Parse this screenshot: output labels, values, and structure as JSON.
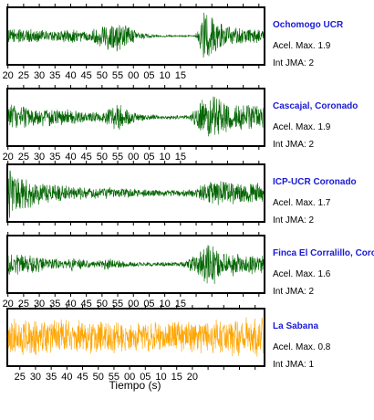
{
  "chart_data": {
    "type": "line",
    "xlabel": "Tiempo (s)",
    "panels": [
      {
        "station": "Ochomogo UCR",
        "acel_label": "Acel. Max. 1.9",
        "int_label": "Int JMA: 2",
        "color": "#006400",
        "tick_labels": [
          "20",
          "25",
          "30",
          "35",
          "40",
          "45",
          "50",
          "55",
          "00",
          "05",
          "10",
          "15"
        ],
        "amplitude": 1.9,
        "envelope": [
          [
            0,
            0.25
          ],
          [
            4,
            0.35
          ],
          [
            10,
            0.25
          ],
          [
            16,
            0.2
          ],
          [
            20,
            0.3
          ],
          [
            26,
            0.18
          ],
          [
            30,
            0.5
          ],
          [
            35,
            0.65
          ],
          [
            42,
            0.15
          ],
          [
            48,
            0.05
          ],
          [
            55,
            0.03
          ],
          [
            60,
            0.03
          ],
          [
            63,
            1.0
          ],
          [
            66,
            0.7
          ],
          [
            70,
            0.45
          ],
          [
            76,
            0.3
          ],
          [
            82,
            0.25
          ]
        ]
      },
      {
        "station": "Cascajal, Coronado",
        "acel_label": "Acel. Max. 1.9",
        "int_label": "Int JMA: 2",
        "color": "#006400",
        "tick_labels": [
          "20",
          "25",
          "30",
          "35",
          "40",
          "45",
          "50",
          "55",
          "00",
          "05",
          "10",
          "15"
        ],
        "amplitude": 1.9,
        "envelope": [
          [
            0,
            0.55
          ],
          [
            5,
            0.45
          ],
          [
            12,
            0.35
          ],
          [
            20,
            0.3
          ],
          [
            25,
            0.2
          ],
          [
            30,
            0.25
          ],
          [
            35,
            0.55
          ],
          [
            42,
            0.15
          ],
          [
            50,
            0.08
          ],
          [
            58,
            0.08
          ],
          [
            62,
            0.7
          ],
          [
            65,
            1.0
          ],
          [
            70,
            0.6
          ],
          [
            76,
            0.5
          ],
          [
            82,
            0.45
          ]
        ]
      },
      {
        "station": "ICP-UCR Coronado",
        "acel_label": "Acel. Max. 1.7",
        "int_label": "Int JMA: 2",
        "color": "#006400",
        "tick_labels": [],
        "amplitude": 1.7,
        "envelope": [
          [
            0,
            1.0
          ],
          [
            3,
            0.8
          ],
          [
            8,
            0.5
          ],
          [
            15,
            0.35
          ],
          [
            25,
            0.25
          ],
          [
            35,
            0.2
          ],
          [
            45,
            0.15
          ],
          [
            55,
            0.12
          ],
          [
            60,
            0.2
          ],
          [
            64,
            0.45
          ],
          [
            70,
            0.5
          ],
          [
            76,
            0.45
          ],
          [
            82,
            0.4
          ]
        ]
      },
      {
        "station": "Finca El Corralillo, Coronado",
        "acel_label": "Acel. Max. 1.6",
        "int_label": "Int JMA: 2",
        "color": "#006400",
        "tick_labels": [
          "20",
          "25",
          "30",
          "35",
          "40",
          "45",
          "50",
          "55",
          "00",
          "05",
          "10",
          "15"
        ],
        "amplitude": 1.6,
        "envelope": [
          [
            0,
            0.45
          ],
          [
            5,
            0.4
          ],
          [
            12,
            0.3
          ],
          [
            18,
            0.15
          ],
          [
            22,
            0.35
          ],
          [
            26,
            0.12
          ],
          [
            33,
            0.25
          ],
          [
            37,
            0.12
          ],
          [
            45,
            0.08
          ],
          [
            55,
            0.08
          ],
          [
            60,
            0.35
          ],
          [
            64,
            1.0
          ],
          [
            68,
            0.55
          ],
          [
            74,
            0.45
          ],
          [
            82,
            0.4
          ]
        ]
      },
      {
        "station": "La Sabana",
        "acel_label": "Acel. Max. 0.8",
        "int_label": "Int JMA: 1",
        "color": "#ffa500",
        "tick_labels": [
          "25",
          "30",
          "35",
          "40",
          "45",
          "50",
          "55",
          "00",
          "05",
          "10",
          "15",
          "20"
        ],
        "amplitude": 0.8,
        "envelope": [
          [
            0,
            0.8
          ],
          [
            10,
            0.75
          ],
          [
            20,
            0.7
          ],
          [
            30,
            0.65
          ],
          [
            40,
            0.6
          ],
          [
            50,
            0.6
          ],
          [
            60,
            0.65
          ],
          [
            70,
            0.75
          ],
          [
            82,
            0.8
          ]
        ]
      }
    ]
  }
}
